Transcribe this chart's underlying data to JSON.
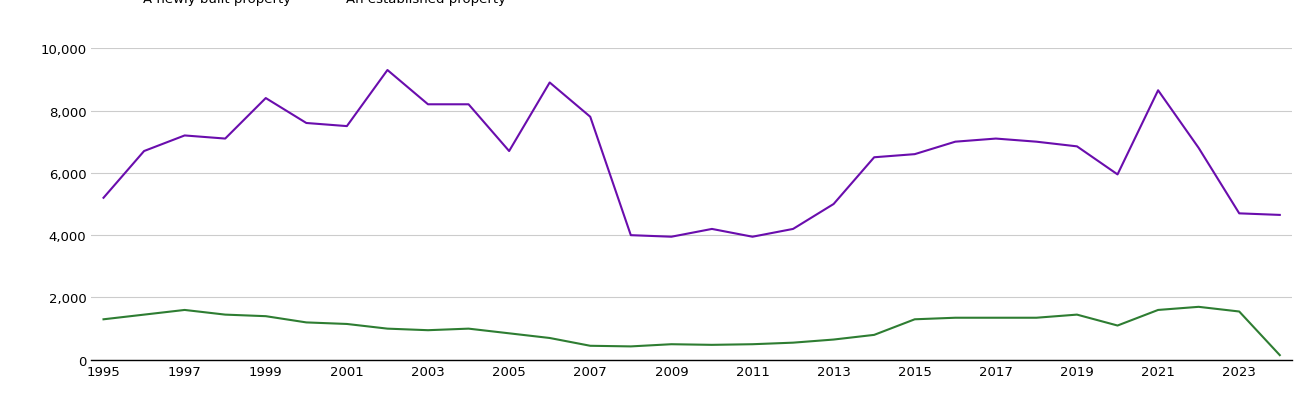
{
  "years": [
    1995,
    1996,
    1997,
    1998,
    1999,
    2000,
    2001,
    2002,
    2003,
    2004,
    2005,
    2006,
    2007,
    2008,
    2009,
    2010,
    2011,
    2012,
    2013,
    2014,
    2015,
    2016,
    2017,
    2018,
    2019,
    2020,
    2021,
    2022,
    2023,
    2024
  ],
  "new_build": [
    1300,
    1450,
    1600,
    1450,
    1400,
    1200,
    1150,
    1000,
    950,
    1000,
    850,
    700,
    450,
    430,
    500,
    480,
    500,
    550,
    650,
    800,
    1300,
    1350,
    1350,
    1350,
    1450,
    1100,
    1600,
    1700,
    1550,
    150
  ],
  "established": [
    5200,
    6700,
    7200,
    7100,
    8400,
    7600,
    7500,
    9300,
    8200,
    8200,
    6700,
    8900,
    7800,
    4000,
    3950,
    4200,
    3950,
    4200,
    5000,
    6500,
    6600,
    7000,
    7100,
    7000,
    6850,
    5950,
    8650,
    6800,
    4700,
    4650
  ],
  "new_build_color": "#2e7d32",
  "established_color": "#6a0dad",
  "ylim": [
    0,
    10000
  ],
  "yticks": [
    0,
    2000,
    4000,
    6000,
    8000,
    10000
  ],
  "background_color": "#ffffff",
  "grid_color": "#cccccc",
  "line_width": 1.5,
  "xtick_labels": [
    "1995",
    "1997",
    "1999",
    "2001",
    "2003",
    "2005",
    "2007",
    "2009",
    "2011",
    "2013",
    "2015",
    "2017",
    "2019",
    "2021",
    "2023"
  ],
  "xtick_values": [
    1995,
    1997,
    1999,
    2001,
    2003,
    2005,
    2007,
    2009,
    2011,
    2013,
    2015,
    2017,
    2019,
    2021,
    2023
  ]
}
